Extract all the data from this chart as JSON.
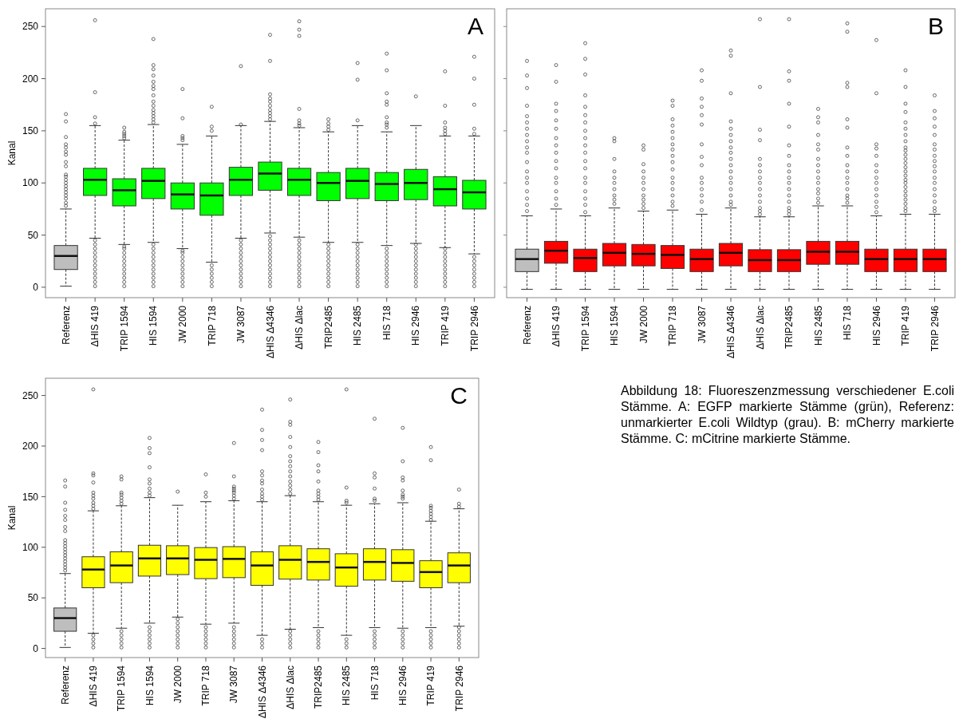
{
  "chart_data": [
    {
      "type": "box",
      "title": "A",
      "ylabel": "Kanal",
      "ylim": [
        -10,
        267
      ],
      "yticks": [
        0,
        50,
        100,
        150,
        200,
        250
      ],
      "grid": false,
      "categories": [
        "Referenz",
        "ΔHIS 419",
        "TRIP 1594",
        "HIS 1594",
        "JW 2000",
        "TRIP 718",
        "JW 3087",
        "ΔHIS Δ4346",
        "ΔHIS Δlac",
        "TRIP2485",
        "HIS 2485",
        "HIS 718",
        "HIS 2946",
        "TRIP 419",
        "TRIP 2946"
      ],
      "colors": [
        "#bebebe",
        "#00ff00",
        "#00ff00",
        "#00ff00",
        "#00ff00",
        "#00ff00",
        "#00ff00",
        "#00ff00",
        "#00ff00",
        "#00ff00",
        "#00ff00",
        "#00ff00",
        "#00ff00",
        "#00ff00",
        "#00ff00"
      ],
      "boxes": [
        {
          "low": 1,
          "q1": 17,
          "median": 30,
          "q3": 40,
          "high": 75,
          "outliers": [
            78,
            81,
            85,
            88,
            91,
            94,
            97,
            100,
            103,
            106,
            108,
            116,
            120,
            127,
            130,
            134,
            137,
            144,
            159,
            166
          ]
        },
        {
          "low": 47,
          "q1": 88,
          "median": 103,
          "q3": 114,
          "high": 155,
          "outliers": [
            1,
            5,
            9,
            13,
            17,
            21,
            25,
            29,
            33,
            37,
            41,
            45,
            157,
            163,
            187,
            256
          ]
        },
        {
          "low": 41,
          "q1": 78,
          "median": 93,
          "q3": 104,
          "high": 141,
          "outliers": [
            1,
            5,
            9,
            13,
            17,
            21,
            25,
            29,
            33,
            37,
            39,
            143,
            145,
            147,
            149,
            153
          ]
        },
        {
          "low": 43,
          "q1": 85,
          "median": 102,
          "q3": 114,
          "high": 156,
          "outliers": [
            1,
            5,
            9,
            13,
            17,
            21,
            25,
            29,
            33,
            37,
            41,
            158,
            161,
            164,
            167,
            170,
            174,
            178,
            184,
            190,
            193,
            197,
            203,
            209,
            213,
            238
          ]
        },
        {
          "low": 37,
          "q1": 75,
          "median": 89,
          "q3": 100,
          "high": 137,
          "outliers": [
            1,
            5,
            9,
            13,
            17,
            21,
            25,
            29,
            33,
            35,
            141,
            143,
            145,
            162,
            190
          ]
        },
        {
          "low": 24,
          "q1": 69,
          "median": 88,
          "q3": 100,
          "high": 145,
          "outliers": [
            1,
            5,
            9,
            13,
            17,
            21,
            150,
            154,
            173
          ]
        },
        {
          "low": 47,
          "q1": 88,
          "median": 103,
          "q3": 115,
          "high": 155,
          "outliers": [
            1,
            5,
            9,
            13,
            17,
            21,
            25,
            29,
            33,
            37,
            41,
            45,
            156,
            212
          ]
        },
        {
          "low": 52,
          "q1": 93,
          "median": 109,
          "q3": 120,
          "high": 159,
          "outliers": [
            1,
            5,
            9,
            13,
            17,
            21,
            25,
            29,
            33,
            37,
            41,
            45,
            49,
            161,
            164,
            167,
            170,
            174,
            178,
            181,
            185,
            217,
            242
          ]
        },
        {
          "low": 48,
          "q1": 88,
          "median": 103,
          "q3": 114,
          "high": 153,
          "outliers": [
            1,
            5,
            9,
            13,
            17,
            21,
            25,
            29,
            33,
            37,
            41,
            45,
            155,
            157,
            160,
            171,
            241,
            247,
            255
          ]
        },
        {
          "low": 43,
          "q1": 83,
          "median": 100,
          "q3": 110,
          "high": 149,
          "outliers": [
            1,
            5,
            9,
            13,
            17,
            21,
            25,
            29,
            33,
            37,
            41,
            151,
            154,
            157,
            161
          ]
        },
        {
          "low": 43,
          "q1": 85,
          "median": 102,
          "q3": 114,
          "high": 155,
          "outliers": [
            1,
            5,
            9,
            13,
            17,
            21,
            25,
            29,
            33,
            37,
            41,
            160,
            199,
            215
          ]
        },
        {
          "low": 40,
          "q1": 83,
          "median": 99,
          "q3": 110,
          "high": 149,
          "outliers": [
            1,
            5,
            9,
            13,
            17,
            21,
            25,
            29,
            33,
            37,
            153,
            156,
            158,
            163,
            175,
            178,
            186,
            208,
            224
          ]
        },
        {
          "low": 42,
          "q1": 84,
          "median": 100,
          "q3": 113,
          "high": 155,
          "outliers": [
            1,
            5,
            9,
            13,
            17,
            21,
            25,
            29,
            33,
            37,
            41,
            183
          ]
        },
        {
          "low": 38,
          "q1": 78,
          "median": 94,
          "q3": 106,
          "high": 145,
          "outliers": [
            1,
            5,
            9,
            13,
            17,
            21,
            25,
            29,
            33,
            37,
            147,
            150,
            153,
            158,
            174,
            207
          ]
        },
        {
          "low": 32,
          "q1": 75,
          "median": 91,
          "q3": 102.5,
          "high": 145,
          "outliers": [
            1,
            5,
            9,
            13,
            17,
            21,
            25,
            29,
            147,
            152,
            175,
            200,
            221
          ]
        }
      ]
    },
    {
      "type": "box",
      "title": "B",
      "ylim": [
        -10,
        267
      ],
      "yticks": [
        0,
        50,
        100,
        150,
        200,
        250
      ],
      "tick_labels": "x",
      "grid": false,
      "categories": [
        "Referenz",
        "ΔHIS 419",
        "TRIP 1594",
        "HIS 1594",
        "JW 2000",
        "TRIP 718",
        "JW 3087",
        "ΔHIS Δ4346",
        "ΔHIS Δlac",
        "TRIP2485",
        "HIS 2485",
        "HIS 718",
        "HIS 2946",
        "TRIP 419",
        "TRIP 2946"
      ],
      "colors": [
        "#bebebe",
        "#ff0000",
        "#ff0000",
        "#ff0000",
        "#ff0000",
        "#ff0000",
        "#ff0000",
        "#ff0000",
        "#ff0000",
        "#ff0000",
        "#ff0000",
        "#ff0000",
        "#ff0000",
        "#ff0000",
        "#ff0000"
      ],
      "boxes": [
        {
          "low": -2,
          "q1": 15,
          "median": 27,
          "q3": 36.5,
          "high": 68.5,
          "outliers": [
            73,
            79,
            85,
            92,
            100,
            105,
            111,
            120,
            129,
            134,
            140,
            146,
            152,
            158,
            164,
            174,
            191,
            203,
            217
          ]
        },
        {
          "low": -2,
          "q1": 23,
          "median": 35,
          "q3": 44,
          "high": 75,
          "outliers": [
            79,
            85,
            92,
            100,
            105,
            114,
            121,
            129,
            136,
            143,
            152,
            160,
            169,
            176,
            197,
            213
          ]
        },
        {
          "low": -2,
          "q1": 15,
          "median": 28,
          "q3": 36.5,
          "high": 68.5,
          "outliers": [
            72,
            79,
            85,
            92,
            100,
            105,
            114,
            121,
            129,
            136,
            143,
            150,
            158,
            165,
            173,
            184,
            204,
            219,
            234
          ]
        },
        {
          "low": -2,
          "q1": 20.5,
          "median": 33,
          "q3": 42,
          "high": 76,
          "outliers": [
            80,
            84,
            88,
            94,
            100,
            105,
            111,
            123,
            140,
            143
          ]
        },
        {
          "low": -2,
          "q1": 20.5,
          "median": 32,
          "q3": 41,
          "high": 73,
          "outliers": [
            76,
            80,
            84,
            88,
            94,
            100,
            105,
            111,
            118,
            132,
            136
          ]
        },
        {
          "low": -2,
          "q1": 18,
          "median": 31,
          "q3": 40,
          "high": 74,
          "outliers": [
            78,
            82,
            88,
            94,
            100,
            105,
            113,
            120,
            126,
            132,
            137,
            143,
            149,
            155,
            161,
            174,
            179
          ]
        },
        {
          "low": -2,
          "q1": 15,
          "median": 27,
          "q3": 36.5,
          "high": 70,
          "outliers": [
            74,
            82,
            88,
            94,
            100,
            105,
            117,
            125,
            137,
            156,
            165,
            173,
            181,
            198,
            208
          ]
        },
        {
          "low": -2,
          "q1": 20.5,
          "median": 33,
          "q3": 42,
          "high": 76,
          "outliers": [
            79,
            82,
            88,
            94,
            100,
            105,
            111,
            117,
            123,
            129,
            134,
            140,
            146,
            152,
            159,
            186,
            222,
            227
          ]
        },
        {
          "low": -2,
          "q1": 15,
          "median": 26,
          "q3": 36,
          "high": 67.5,
          "outliers": [
            70,
            73,
            76,
            82,
            88,
            94,
            100,
            105,
            111,
            117,
            123,
            141,
            151,
            192,
            257
          ]
        },
        {
          "low": -2,
          "q1": 15,
          "median": 26,
          "q3": 36,
          "high": 67.5,
          "outliers": [
            70,
            73,
            76,
            82,
            88,
            94,
            100,
            105,
            111,
            117,
            126,
            136,
            154,
            176,
            198,
            207,
            257
          ]
        },
        {
          "low": -2,
          "q1": 22,
          "median": 34,
          "q3": 44,
          "high": 78,
          "outliers": [
            81,
            85,
            90,
            94,
            100,
            105,
            111,
            117,
            123,
            132,
            137,
            146,
            158,
            163,
            171
          ]
        },
        {
          "low": -2,
          "q1": 22,
          "median": 34,
          "q3": 44,
          "high": 78,
          "outliers": [
            81,
            85,
            88,
            94,
            100,
            105,
            111,
            117,
            126,
            134,
            153,
            161,
            192,
            196,
            245,
            253
          ]
        },
        {
          "low": -2,
          "q1": 15,
          "median": 27,
          "q3": 36.5,
          "high": 68.5,
          "outliers": [
            72,
            77,
            82,
            88,
            94,
            100,
            105,
            111,
            117,
            126,
            133,
            137,
            186,
            237
          ]
        },
        {
          "low": -2,
          "q1": 15,
          "median": 27,
          "q3": 36.5,
          "high": 70,
          "outliers": [
            73,
            76,
            80,
            84,
            88,
            92,
            96,
            100,
            103,
            107,
            111,
            115,
            119,
            123,
            127,
            131,
            134,
            140,
            146,
            152,
            158,
            168,
            176,
            192,
            208
          ]
        },
        {
          "low": -2,
          "q1": 15,
          "median": 27,
          "q3": 36.5,
          "high": 70,
          "outliers": [
            73,
            76,
            82,
            88,
            94,
            100,
            105,
            111,
            116,
            121,
            126,
            132,
            137,
            146,
            154,
            162,
            169,
            184
          ]
        }
      ]
    },
    {
      "type": "box",
      "title": "C",
      "ylabel": "Kanal",
      "ylim": [
        -9,
        267
      ],
      "yticks": [
        0,
        50,
        100,
        150,
        200,
        250
      ],
      "grid": false,
      "categories": [
        "Referenz",
        "ΔHIS 419",
        "TRIP 1594",
        "HIS 1594",
        "JW 2000",
        "TRIP 718",
        "JW 3087",
        "ΔHIS Δ4346",
        "ΔHIS Δlac",
        "TRIP2485",
        "HIS 2485",
        "HIS 718",
        "HIS 2946",
        "TRIP 419",
        "TRIP 2946"
      ],
      "colors": [
        "#bebebe",
        "#ffff00",
        "#ffff00",
        "#ffff00",
        "#ffff00",
        "#ffff00",
        "#ffff00",
        "#ffff00",
        "#ffff00",
        "#ffff00",
        "#ffff00",
        "#ffff00",
        "#ffff00",
        "#ffff00",
        "#ffff00"
      ],
      "annotations": [
        "Abbildung 18: Fluoreszenzmessung verschiedener E.coli Stämme. A: EGFP markierte Stämme (grün), Referenz: unmarkierter E.coli Wildtyp (grau). B: mCherry markierte Stämme. C: mCitrine markierte Stämme."
      ],
      "boxes": [
        {
          "low": 1,
          "q1": 17,
          "median": 30,
          "q3": 40,
          "high": 74,
          "outliers": [
            77,
            80,
            83,
            86,
            89,
            92,
            95,
            98,
            101,
            104,
            107,
            116,
            120,
            127,
            131,
            137,
            144,
            160,
            166
          ]
        },
        {
          "low": 15,
          "q1": 60,
          "median": 78,
          "q3": 90.6,
          "high": 136,
          "outliers": [
            1,
            5,
            9,
            13,
            138,
            141,
            144,
            148,
            151,
            154,
            164,
            171,
            173,
            256
          ]
        },
        {
          "low": 20,
          "q1": 65,
          "median": 82,
          "q3": 95.5,
          "high": 141,
          "outliers": [
            1,
            5,
            9,
            13,
            17,
            143,
            146,
            149,
            152,
            154,
            167,
            170
          ]
        },
        {
          "low": 25,
          "q1": 71.5,
          "median": 89,
          "q3": 102,
          "high": 149,
          "outliers": [
            1,
            5,
            9,
            13,
            17,
            21,
            151,
            154,
            158,
            163,
            167,
            179,
            193,
            198,
            208
          ]
        },
        {
          "low": 31,
          "q1": 73,
          "median": 89,
          "q3": 101.5,
          "high": 141.5,
          "outliers": [
            1,
            5,
            9,
            13,
            17,
            21,
            25,
            29,
            155
          ]
        },
        {
          "low": 24,
          "q1": 69,
          "median": 87.6,
          "q3": 99.7,
          "high": 145,
          "outliers": [
            1,
            5,
            9,
            13,
            17,
            21,
            150,
            154,
            172
          ]
        },
        {
          "low": 25,
          "q1": 70,
          "median": 88.5,
          "q3": 100.6,
          "high": 146,
          "outliers": [
            1,
            5,
            9,
            13,
            17,
            21,
            148,
            151,
            154,
            156,
            158,
            160,
            170,
            203
          ]
        },
        {
          "low": 13,
          "q1": 62.4,
          "median": 82,
          "q3": 95.5,
          "high": 145,
          "outliers": [
            1,
            5,
            9,
            147,
            150,
            153,
            157,
            163,
            166,
            171,
            175,
            196,
            206,
            216,
            236
          ]
        },
        {
          "low": 19,
          "q1": 68.5,
          "median": 87.6,
          "q3": 101.5,
          "high": 151,
          "outliers": [
            1,
            5,
            9,
            13,
            17,
            153,
            157,
            161,
            165,
            170,
            175,
            180,
            185,
            190,
            199,
            209,
            221,
            224,
            246
          ]
        },
        {
          "low": 20.6,
          "q1": 67.6,
          "median": 85.5,
          "q3": 98.5,
          "high": 145,
          "outliers": [
            1,
            5,
            9,
            13,
            17,
            147,
            150,
            153,
            156,
            165,
            175,
            181,
            194,
            204
          ]
        },
        {
          "low": 13,
          "q1": 61.5,
          "median": 80,
          "q3": 93.6,
          "high": 141.5,
          "outliers": [
            1,
            5,
            9,
            144,
            146,
            159,
            256
          ]
        },
        {
          "low": 20.6,
          "q1": 67.6,
          "median": 85.5,
          "q3": 98.5,
          "high": 143,
          "outliers": [
            1,
            5,
            9,
            13,
            17,
            146,
            148,
            158,
            169,
            173,
            227
          ]
        },
        {
          "low": 20,
          "q1": 66.4,
          "median": 84.5,
          "q3": 97.6,
          "high": 144,
          "outliers": [
            1,
            5,
            9,
            13,
            17,
            148,
            150,
            152,
            156,
            166,
            169,
            185,
            218
          ]
        },
        {
          "low": 20.6,
          "q1": 60,
          "median": 75.5,
          "q3": 86.7,
          "high": 125.7,
          "outliers": [
            1,
            5,
            9,
            13,
            17,
            127,
            130,
            133,
            136,
            139,
            141,
            186,
            199
          ]
        },
        {
          "low": 22,
          "q1": 65,
          "median": 82,
          "q3": 94.5,
          "high": 138,
          "outliers": [
            1,
            5,
            9,
            13,
            17,
            21,
            140,
            143,
            157
          ]
        }
      ]
    }
  ]
}
